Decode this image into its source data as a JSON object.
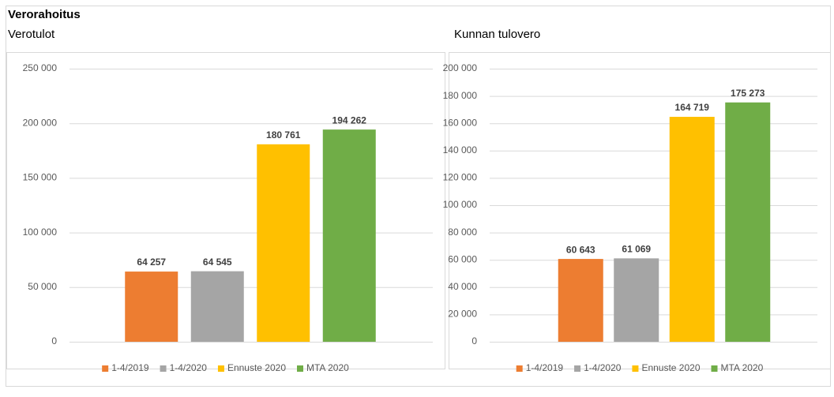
{
  "title": "Verorahoitus",
  "chart_data": [
    {
      "type": "bar",
      "title": "Verotulot",
      "series": [
        {
          "name": "1-4/2019",
          "color": "#ed7d31",
          "values": [
            64257
          ],
          "value_labels": [
            "64 257"
          ]
        },
        {
          "name": "1-4/2020",
          "color": "#a5a5a5",
          "values": [
            64545
          ],
          "value_labels": [
            "64 545"
          ]
        },
        {
          "name": "Ennuste 2020",
          "color": "#ffc000",
          "values": [
            180761
          ],
          "value_labels": [
            "180 761"
          ]
        },
        {
          "name": "MTA 2020",
          "color": "#70ad47",
          "values": [
            194262
          ],
          "value_labels": [
            "194 262"
          ]
        }
      ],
      "ylim": [
        0,
        250000
      ],
      "yticks": [
        0,
        {
          "value": 50000,
          "label": "50 000"
        },
        {
          "value": 100000,
          "label": "100 000"
        },
        {
          "value": 150000,
          "label": "150 000"
        },
        {
          "value": 200000,
          "label": "200 000"
        },
        {
          "value": 250000,
          "label": "250 000"
        }
      ],
      "grid": true,
      "legend": "bottom"
    },
    {
      "type": "bar",
      "title": "Kunnan tulovero",
      "series": [
        {
          "name": "1-4/2019",
          "color": "#ed7d31",
          "values": [
            60643
          ],
          "value_labels": [
            "60 643"
          ]
        },
        {
          "name": "1-4/2020",
          "color": "#a5a5a5",
          "values": [
            61069
          ],
          "value_labels": [
            "61 069"
          ]
        },
        {
          "name": "Ennuste 2020",
          "color": "#ffc000",
          "values": [
            164719
          ],
          "value_labels": [
            "164 719"
          ]
        },
        {
          "name": "MTA 2020",
          "color": "#70ad47",
          "values": [
            175273
          ],
          "value_labels": [
            "175 273"
          ]
        }
      ],
      "ylim": [
        0,
        200000
      ],
      "yticks": [
        0,
        {
          "value": 20000,
          "label": "20 000"
        },
        {
          "value": 40000,
          "label": "40 000"
        },
        {
          "value": 60000,
          "label": "60 000"
        },
        {
          "value": 80000,
          "label": "80 000"
        },
        {
          "value": 100000,
          "label": "100 000"
        },
        {
          "value": 120000,
          "label": "120 000"
        },
        {
          "value": 140000,
          "label": "140 000"
        },
        {
          "value": 160000,
          "label": "160 000"
        },
        {
          "value": 180000,
          "label": "180 000"
        },
        {
          "value": 200000,
          "label": "200 000"
        }
      ],
      "grid": true,
      "legend": "bottom"
    }
  ]
}
